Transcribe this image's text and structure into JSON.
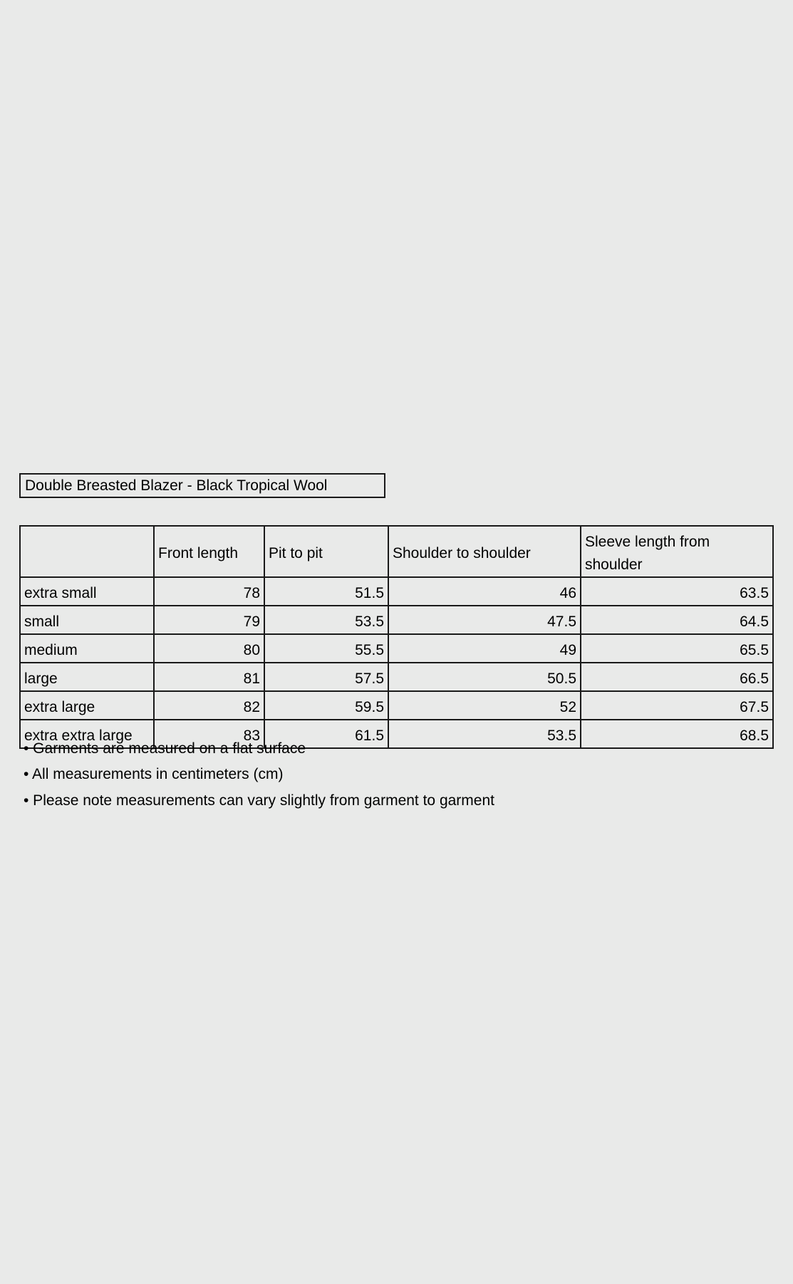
{
  "title": "Double Breasted Blazer - Black Tropical Wool",
  "table": {
    "headers": [
      "",
      "Front length",
      "Pit to pit",
      "Shoulder to shoulder",
      "Sleeve length from shoulder"
    ],
    "rows": [
      [
        "extra small",
        "78",
        "51.5",
        "46",
        "63.5"
      ],
      [
        "small",
        "79",
        "53.5",
        "47.5",
        "64.5"
      ],
      [
        "medium",
        "80",
        "55.5",
        "49",
        "65.5"
      ],
      [
        "large",
        "81",
        "57.5",
        "50.5",
        "66.5"
      ],
      [
        "extra large",
        "82",
        "59.5",
        "52",
        "67.5"
      ],
      [
        "extra extra large",
        "83",
        "61.5",
        "53.5",
        "68.5"
      ]
    ]
  },
  "notes": [
    "• Garments are measured on a flat surface",
    "• All measurements in centimeters (cm)",
    "• Please note measurements can vary slightly from garment to garment"
  ]
}
